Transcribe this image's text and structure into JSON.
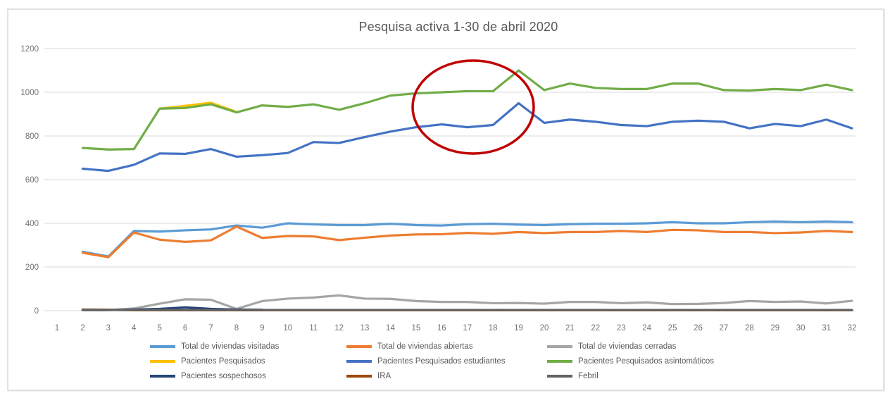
{
  "chart": {
    "title": "Pesquisa activa 1-30 de abril 2020",
    "annotation": {
      "shape": "ellipse",
      "color": "#c00000",
      "highlights": "days 16-19 where asymptomatic and student lines peak"
    }
  },
  "chart_data": {
    "type": "line",
    "title": "Pesquisa activa 1-30 de abril 2020",
    "xlabel": "",
    "ylabel": "",
    "ylim": [
      0,
      1200
    ],
    "yticks": [
      0,
      200,
      400,
      600,
      800,
      1000,
      1200
    ],
    "x_axis_labels": [
      "1",
      "2",
      "3",
      "4",
      "5",
      "6",
      "7",
      "8",
      "9",
      "10",
      "11",
      "12",
      "13",
      "14",
      "15",
      "16",
      "17",
      "18",
      "19",
      "20",
      "21",
      "22",
      "23",
      "24",
      "25",
      "26",
      "27",
      "28",
      "29",
      "30",
      "31",
      "32"
    ],
    "x": [
      2,
      3,
      4,
      5,
      6,
      7,
      8,
      9,
      10,
      11,
      12,
      13,
      14,
      15,
      16,
      17,
      18,
      19,
      20,
      21,
      22,
      23,
      24,
      25,
      26,
      27,
      28,
      29,
      30,
      31,
      32
    ],
    "grid": "horizontal",
    "legend_position": "bottom",
    "series": [
      {
        "name": "Total de viviendas visitadas",
        "color": "#5b9bd5",
        "values": [
          270,
          248,
          365,
          362,
          368,
          372,
          390,
          380,
          400,
          395,
          392,
          392,
          398,
          392,
          390,
          396,
          398,
          394,
          392,
          396,
          398,
          398,
          400,
          405,
          400,
          400,
          405,
          408,
          405,
          408,
          405
        ]
      },
      {
        "name": "Total de viviendas abiertas",
        "color": "#ed7d31",
        "values": [
          265,
          245,
          358,
          325,
          315,
          322,
          385,
          333,
          342,
          340,
          323,
          334,
          344,
          349,
          350,
          356,
          352,
          360,
          355,
          360,
          360,
          365,
          360,
          370,
          368,
          360,
          360,
          355,
          358,
          365,
          360
        ]
      },
      {
        "name": "Total de viviendas cerradas",
        "color": "#a5a5a5",
        "values": [
          2,
          2,
          10,
          32,
          52,
          50,
          8,
          44,
          55,
          60,
          70,
          55,
          54,
          44,
          40,
          40,
          34,
          35,
          32,
          40,
          40,
          34,
          38,
          30,
          31,
          35,
          44,
          40,
          42,
          33,
          45
        ]
      },
      {
        "name": "Pacientes Pesquisados",
        "color": "#ffc000",
        "values": [
          null,
          null,
          null,
          925,
          938,
          952,
          910,
          null,
          null,
          null,
          null,
          null,
          null,
          null,
          null,
          null,
          null,
          null,
          null,
          null,
          null,
          null,
          null,
          null,
          null,
          null,
          null,
          null,
          null,
          null,
          null
        ]
      },
      {
        "name": "Pacientes Pesquisados estudiantes",
        "color": "#4472c4",
        "values": [
          650,
          640,
          668,
          720,
          718,
          740,
          705,
          712,
          722,
          772,
          768,
          795,
          820,
          840,
          853,
          840,
          850,
          950,
          860,
          875,
          865,
          850,
          845,
          865,
          870,
          865,
          835,
          855,
          845,
          875,
          835
        ]
      },
      {
        "name": "Pacientes Pesquisados asintomáticos",
        "color": "#70ad47",
        "values": [
          745,
          738,
          740,
          925,
          928,
          945,
          908,
          940,
          933,
          945,
          920,
          950,
          985,
          995,
          1000,
          1005,
          1005,
          1100,
          1010,
          1040,
          1020,
          1015,
          1015,
          1040,
          1040,
          1010,
          1008,
          1015,
          1010,
          1035,
          1010
        ]
      },
      {
        "name": "Pacientes sospechosos",
        "color": "#264478",
        "values": [
          3,
          3,
          5,
          8,
          15,
          8,
          5,
          4,
          null,
          null,
          null,
          null,
          null,
          null,
          null,
          null,
          null,
          null,
          null,
          null,
          null,
          null,
          null,
          null,
          null,
          null,
          null,
          null,
          null,
          null,
          null
        ]
      },
      {
        "name": "IRA",
        "color": "#9e480e",
        "values": [
          5,
          4,
          2,
          2,
          2,
          2,
          2,
          2,
          2,
          2,
          2,
          2,
          2,
          2,
          2,
          2,
          2,
          2,
          2,
          2,
          2,
          2,
          2,
          2,
          2,
          2,
          2,
          2,
          2,
          2,
          2
        ]
      },
      {
        "name": "Febril",
        "color": "#636363",
        "values": [
          3,
          3,
          3,
          3,
          3,
          3,
          3,
          3,
          3,
          3,
          3,
          3,
          3,
          3,
          3,
          3,
          3,
          3,
          3,
          3,
          3,
          3,
          3,
          3,
          3,
          3,
          3,
          3,
          3,
          3,
          3
        ]
      }
    ]
  }
}
